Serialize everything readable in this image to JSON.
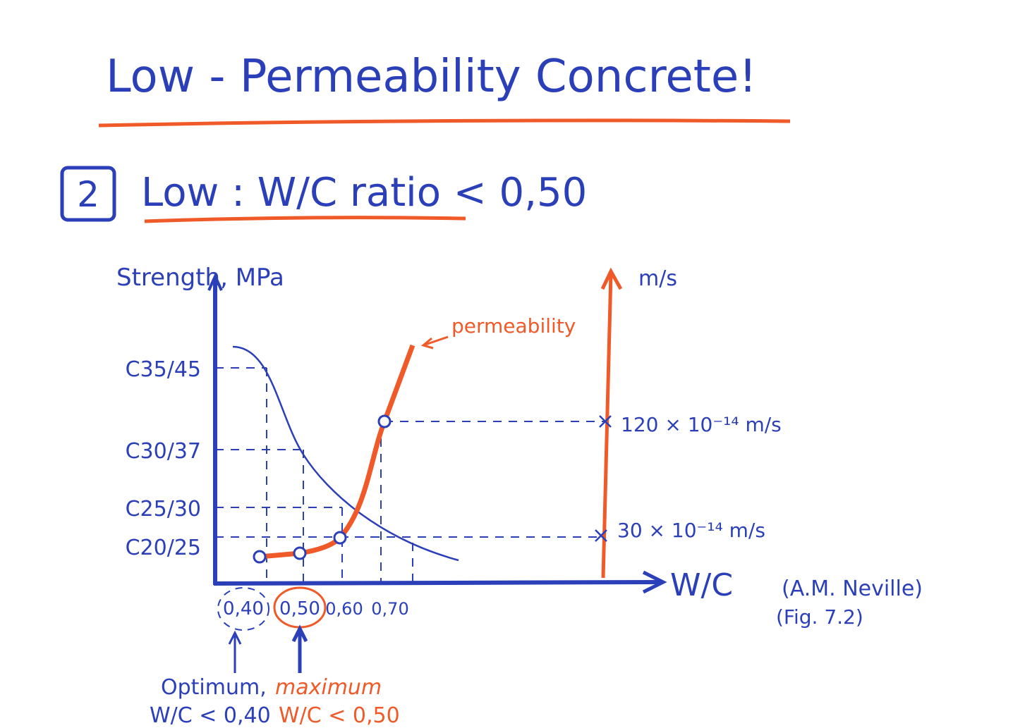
{
  "title": "Low - Permeability Concrete!",
  "heading": {
    "number": "2",
    "text": "Low : W/C ratio < 0,50"
  },
  "diagram": {
    "y_axis_label": "Strength, MPa",
    "y2_axis_label": "m/s",
    "x_axis_label": "W/C",
    "strength_classes": [
      "C35/45",
      "C30/37",
      "C25/30",
      "C20/25"
    ],
    "wc_ratios": [
      "0,40",
      "0,50",
      "0,60",
      "0,70"
    ],
    "permeability_label": "permeability",
    "permeability_values": [
      "120 × 10⁻¹⁴ m/s",
      "30 × 10⁻¹⁴ m/s"
    ],
    "source": [
      "(A.M. Neville)",
      "(Fig. 7.2)"
    ],
    "notes": [
      {
        "text": "Optimum,",
        "sub": "W/C < 0,40"
      },
      {
        "text": "maximum",
        "sub": "W/C < 0,50"
      }
    ]
  }
}
